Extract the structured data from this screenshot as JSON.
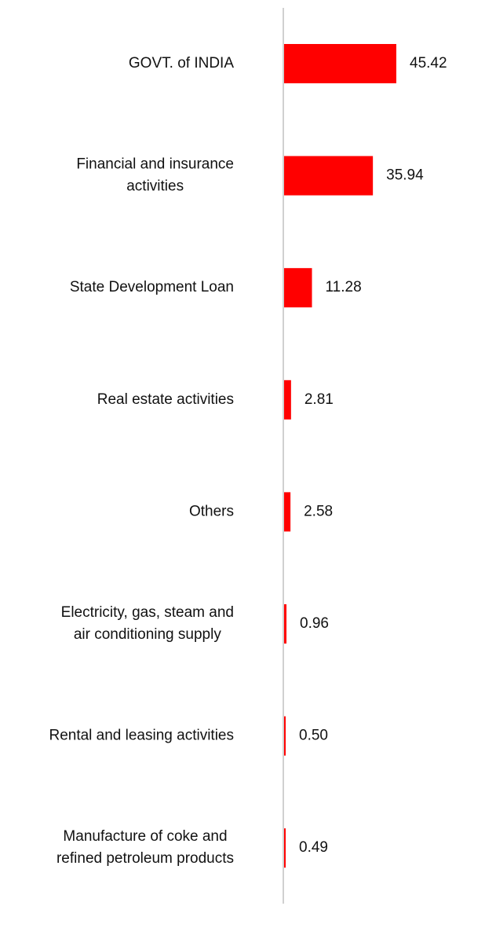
{
  "chart_data": {
    "type": "bar",
    "orientation": "horizontal",
    "categories": [
      "GOVT. of INDIA",
      "Financial and insurance activities",
      "State Development Loan",
      "Real estate activities",
      "Others",
      "Electricity, gas, steam and air conditioning supply",
      "Rental and leasing activities",
      "Manufacture of coke and refined petroleum products"
    ],
    "category_lines": [
      [
        "GOVT. of INDIA"
      ],
      [
        "Financial and insurance",
        "activities"
      ],
      [
        "State Development Loan"
      ],
      [
        "Real estate activities"
      ],
      [
        "Others"
      ],
      [
        "Electricity, gas, steam and",
        "air conditioning supply"
      ],
      [
        "Rental and leasing activities"
      ],
      [
        "Manufacture of coke and",
        "refined petroleum products"
      ]
    ],
    "values": [
      45.42,
      35.94,
      11.28,
      2.81,
      2.58,
      0.96,
      0.5,
      0.49
    ],
    "value_labels": [
      "45.42",
      "35.94",
      "11.28",
      "2.81",
      "2.58",
      "0.96",
      "0.50",
      "0.49"
    ],
    "xlim": [
      0,
      45.42
    ],
    "bar_color": "#ff0000",
    "axis_color": "#d0d0d0",
    "grid": false,
    "legend": "none"
  }
}
